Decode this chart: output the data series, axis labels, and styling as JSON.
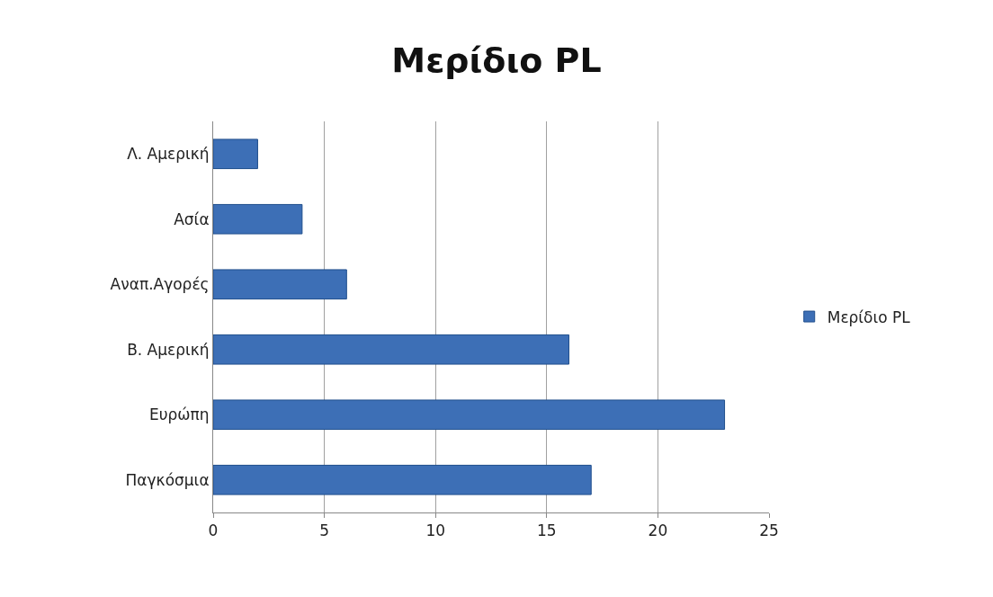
{
  "chart_data": {
    "type": "bar",
    "title": "Μερίδιο PL",
    "orientation": "horizontal",
    "categories": [
      "Λ. Αμερική",
      "Ασία",
      "Αναπ.Αγορές",
      "Β. Αμερική",
      "Ευρώπη",
      "Παγκόσμια"
    ],
    "series": [
      {
        "name": "Μερίδιο PL",
        "color": "#3d6fb6",
        "values": [
          2,
          4,
          6,
          16,
          23,
          17
        ]
      }
    ],
    "xlim": [
      0,
      25
    ],
    "xticks": [
      0,
      5,
      10,
      15,
      20,
      25
    ],
    "grid": "x",
    "legend": "right"
  }
}
